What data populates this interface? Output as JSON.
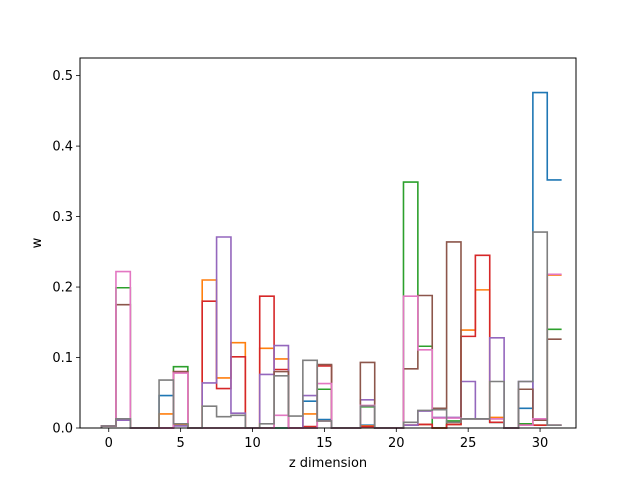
{
  "chart_data": {
    "type": "step",
    "xlabel": "z dimension",
    "ylabel": "w",
    "xlim": [
      -2,
      32.5
    ],
    "ylim": [
      0,
      0.525
    ],
    "x_ticks": [
      0,
      5,
      10,
      15,
      20,
      25,
      30
    ],
    "y_ticks": [
      0.0,
      0.1,
      0.2,
      0.3,
      0.4,
      0.5
    ],
    "x_tick_labels": [
      "0",
      "5",
      "10",
      "15",
      "20",
      "25",
      "30"
    ],
    "y_tick_labels": [
      "0.0",
      "0.1",
      "0.2",
      "0.3",
      "0.4",
      "0.5"
    ],
    "grid": false,
    "bins": [
      0,
      1,
      2,
      3,
      4,
      5,
      6,
      7,
      8,
      9,
      10,
      11,
      12,
      13,
      14,
      15,
      16,
      17,
      18,
      19,
      20,
      21,
      22,
      23,
      24,
      25,
      26,
      27,
      28,
      29,
      30,
      31
    ],
    "series": [
      {
        "color": "#1f77b4",
        "values": [
          0.003,
          0.013,
          0,
          0,
          0.046,
          0.004,
          0,
          0,
          0,
          0,
          0,
          0,
          0,
          0,
          0.038,
          0.012,
          0,
          0,
          0.004,
          0,
          0,
          0.004,
          0.005,
          0,
          0.005,
          0.013,
          0.013,
          0.008,
          0,
          0.028,
          0.476,
          0.352
        ]
      },
      {
        "color": "#ff7f0e",
        "values": [
          0.003,
          0.011,
          0,
          0,
          0.02,
          0.005,
          0,
          0.21,
          0.071,
          0.121,
          0,
          0.113,
          0.098,
          0,
          0.02,
          0.01,
          0,
          0,
          0.003,
          0,
          0,
          0.004,
          0.005,
          0,
          0.005,
          0.139,
          0.196,
          0.015,
          0,
          0.006,
          0.013,
          0.217
        ]
      },
      {
        "color": "#2ca02c",
        "values": [
          0.003,
          0.199,
          0,
          0,
          0,
          0.087,
          0,
          0,
          0,
          0,
          0,
          0,
          0,
          0,
          0,
          0.055,
          0,
          0,
          0.03,
          0,
          0,
          0.349,
          0.116,
          0,
          0.01,
          0.013,
          0.013,
          0.008,
          0,
          0.006,
          0.004,
          0.14
        ]
      },
      {
        "color": "#d62728",
        "values": [
          0.003,
          0.011,
          0,
          0,
          0,
          0.08,
          0,
          0.18,
          0.056,
          0.101,
          0,
          0.187,
          0.083,
          0,
          0.002,
          0.088,
          0,
          0,
          0.002,
          0,
          0,
          0.004,
          0.005,
          0,
          0.005,
          0.13,
          0.245,
          0.008,
          0,
          0.004,
          0.004,
          0.004
        ]
      },
      {
        "color": "#9467bd",
        "values": [
          0.003,
          0.011,
          0,
          0,
          0,
          0.003,
          0,
          0.064,
          0.271,
          0.021,
          0,
          0.076,
          0.117,
          0,
          0.046,
          0.01,
          0,
          0,
          0.04,
          0,
          0,
          0.004,
          0.024,
          0.015,
          0.015,
          0.066,
          0.013,
          0.128,
          0,
          0.066,
          0.011,
          0.004
        ]
      },
      {
        "color": "#8c564b",
        "values": [
          0.003,
          0.175,
          0,
          0,
          0,
          0.08,
          0,
          0,
          0,
          0,
          0,
          0,
          0.08,
          0,
          0,
          0.09,
          0,
          0,
          0.093,
          0,
          0,
          0.084,
          0.188,
          0.028,
          0.264,
          0.013,
          0.013,
          0.013,
          0,
          0.055,
          0.011,
          0.126
        ]
      },
      {
        "color": "#e377c2",
        "values": [
          0.003,
          0.222,
          0,
          0,
          0,
          0.078,
          0,
          0,
          0,
          0,
          0,
          0,
          0.018,
          0,
          0,
          0.063,
          0,
          0,
          0.032,
          0,
          0,
          0.187,
          0.111,
          0.014,
          0.014,
          0.013,
          0.013,
          0.013,
          0,
          0.004,
          0.013,
          0.218
        ]
      },
      {
        "color": "#7f7f7f",
        "values": [
          0.003,
          0.013,
          0,
          0,
          0.068,
          0.006,
          0,
          0.031,
          0.016,
          0.018,
          0,
          0.006,
          0.074,
          0.017,
          0.096,
          0.01,
          0,
          0,
          0.031,
          0,
          0,
          0.008,
          0.025,
          0.026,
          0.008,
          0.013,
          0.013,
          0.066,
          0,
          0.066,
          0.278,
          0.004
        ]
      }
    ]
  }
}
